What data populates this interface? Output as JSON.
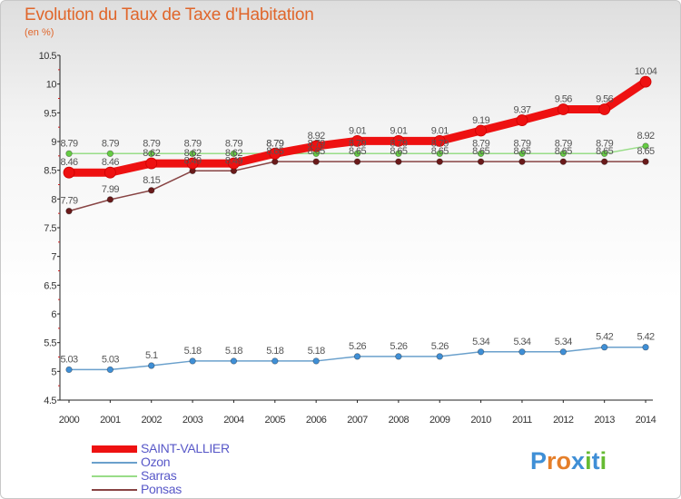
{
  "header": {
    "title": "Evolution du Taux de Taxe d'Habitation",
    "unit": "(en %)"
  },
  "logo": {
    "text": "Proxiti"
  },
  "chart_data": {
    "type": "line",
    "title": "Evolution du Taux de Taxe d'Habitation",
    "ylabel": "(en %)",
    "xlabel": "",
    "ylim": [
      4.5,
      10.5
    ],
    "yticks": [
      "4.5",
      "5",
      "5.5",
      "6",
      "6.5",
      "7",
      "7.5",
      "8",
      "8.5",
      "9",
      "9.5",
      "10",
      "10.5"
    ],
    "grid": false,
    "legend": "bottom-left",
    "x": [
      "2000",
      "2001",
      "2002",
      "2003",
      "2004",
      "2005",
      "2006",
      "2007",
      "2008",
      "2009",
      "2010",
      "2011",
      "2012",
      "2013",
      "2014"
    ],
    "series": [
      {
        "name": "SAINT-VALLIER",
        "color": "#ee1111",
        "marker": "#ee1111",
        "emphasis": true,
        "values": [
          8.46,
          8.46,
          8.62,
          8.62,
          8.62,
          8.79,
          8.92,
          9.01,
          9.01,
          9.01,
          9.19,
          9.37,
          9.56,
          9.56,
          10.04
        ],
        "labels": [
          "8.46",
          "8.46",
          "8.62",
          "8.62",
          "8.62",
          "8.79",
          "8.92",
          "9.01",
          "9.01",
          "9.01",
          "9.19",
          "9.37",
          "9.56",
          "9.56",
          "10.04"
        ]
      },
      {
        "name": "Ozon",
        "color": "#6aa0cc",
        "marker": "#3f8fd6",
        "emphasis": false,
        "values": [
          5.03,
          5.03,
          5.1,
          5.18,
          5.18,
          5.18,
          5.18,
          5.26,
          5.26,
          5.26,
          5.34,
          5.34,
          5.34,
          5.42,
          5.42
        ],
        "labels": [
          "5.03",
          "5.03",
          "5.1",
          "5.18",
          "5.18",
          "5.18",
          "5.18",
          "5.26",
          "5.26",
          "5.26",
          "5.34",
          "5.34",
          "5.34",
          "5.42",
          "5.42"
        ]
      },
      {
        "name": "Sarras",
        "color": "#99dd88",
        "marker": "#66cc44",
        "emphasis": false,
        "values": [
          8.79,
          8.79,
          8.79,
          8.79,
          8.79,
          8.79,
          8.79,
          8.79,
          8.79,
          8.79,
          8.79,
          8.79,
          8.79,
          8.79,
          8.92
        ],
        "labels": [
          "8.79",
          "8.79",
          "8.79",
          "8.79",
          "8.79",
          "8.79",
          "8.79",
          "8.79",
          "8.79",
          "8.79",
          "8.79",
          "8.79",
          "8.79",
          "8.79",
          "8.92"
        ]
      },
      {
        "name": "Ponsas",
        "color": "#884444",
        "marker": "#6a1a1a",
        "emphasis": false,
        "values": [
          7.79,
          7.99,
          8.15,
          8.49,
          8.49,
          8.65,
          8.65,
          8.65,
          8.65,
          8.65,
          8.65,
          8.65,
          8.65,
          8.65,
          8.65
        ],
        "labels": [
          "7.79",
          "7.99",
          "8.15",
          "8.49",
          "8.49",
          "8.65",
          "8.65",
          "8.65",
          "8.65",
          "8.65",
          "8.65",
          "8.65",
          "8.65",
          "8.65",
          "8.65"
        ]
      }
    ]
  }
}
